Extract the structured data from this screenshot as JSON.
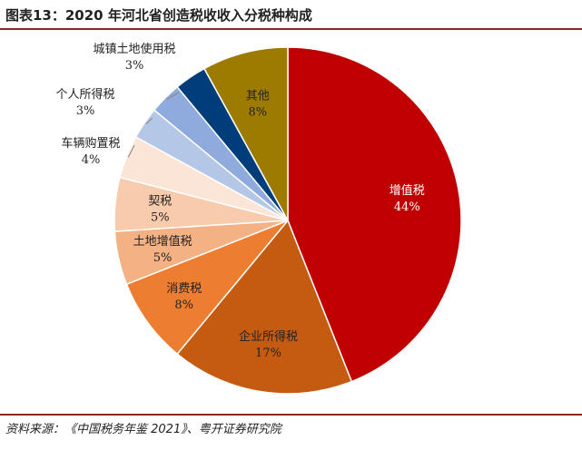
{
  "figure": {
    "title": "图表13：2020 年河北省创造税收收入分税种构成",
    "source": "资料来源：《中国税务年鉴 2021》、粤开证券研究院"
  },
  "chart_data": {
    "type": "pie",
    "title": "图表13：2020 年河北省创造税收收入分税种构成",
    "start": "12 o'clock",
    "direction": "clockwise",
    "legend": "none",
    "slices": [
      {
        "name": "增值税",
        "value": 44,
        "label": "44%",
        "color": "#c00000",
        "label_color": "#ffffff"
      },
      {
        "name": "企业所得税",
        "value": 17,
        "label": "17%",
        "color": "#c55a11",
        "label_color": "#222222"
      },
      {
        "name": "消费税",
        "value": 8,
        "label": "8%",
        "color": "#ed7d31",
        "label_color": "#222222"
      },
      {
        "name": "土地增值税",
        "value": 5,
        "label": "5%",
        "color": "#f4b183",
        "label_color": "#222222"
      },
      {
        "name": "契税",
        "value": 5,
        "label": "5%",
        "color": "#f8cbad",
        "label_color": "#222222"
      },
      {
        "name": "车辆购置税",
        "value": 4,
        "label": "4%",
        "color": "#fbe5d6",
        "label_color": "#222222"
      },
      {
        "name": "个人所得税",
        "value": 3,
        "label": "3%",
        "color": "#b4c7e7",
        "label_color": "#222222"
      },
      {
        "name": "城镇土地使用税",
        "value": 3,
        "label": "3%",
        "color": "#8faadc",
        "label_color": "#222222"
      },
      {
        "name": "其他（深蓝）",
        "value": 3,
        "label": "",
        "color": "#003d7a",
        "label_color": "#222222"
      },
      {
        "name": "其他",
        "value": 8,
        "label": "8%",
        "color": "#9c7b00",
        "label_color": "#222222"
      }
    ]
  }
}
